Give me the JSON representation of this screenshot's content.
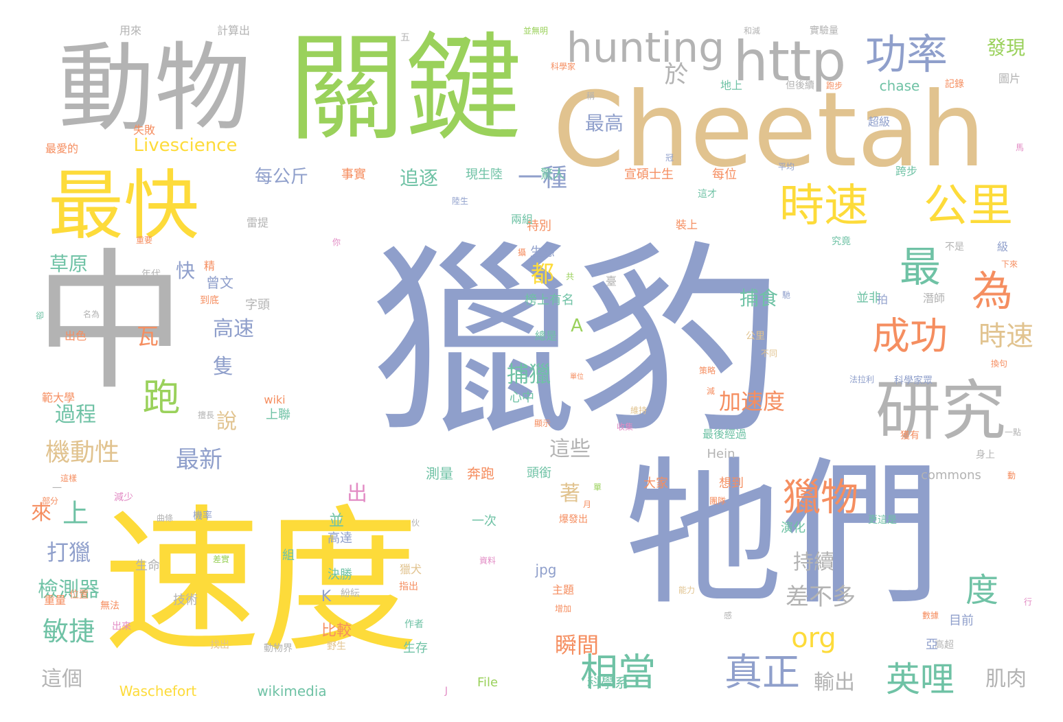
{
  "palette": {
    "blue": "#8f9fcb",
    "yellow": "#fddb3a",
    "green": "#9ad15b",
    "gray": "#b3b3b3",
    "tan": "#e1c38f",
    "orange": "#f58e60",
    "teal": "#6fc2a5",
    "pink": "#e28bc4"
  },
  "words": [
    "獵豹",
    "速度",
    "牠們",
    "中",
    "關鍵",
    "Cheetah",
    "動物",
    "最快",
    "研究",
    "http",
    "功率",
    "hunting",
    "時速",
    "公里",
    "最",
    "成功",
    "為",
    "跑",
    "獵物",
    "相當",
    "真正",
    "英哩",
    "度",
    "org",
    "時速",
    "於",
    "最高",
    "Livescience",
    "每公斤",
    "追逐",
    "一種",
    "發現",
    "草原",
    "快",
    "都",
    "捕食",
    "機動性",
    "最新",
    "說",
    "加速度",
    "捕獵",
    "高速",
    "隻",
    "過程",
    "瓦",
    "打獵",
    "上",
    "來",
    "敏捷",
    "檢測器",
    "差不多",
    "持續",
    "瞬間",
    "著",
    "出",
    "這些",
    "輸出",
    "肌肉",
    "這個",
    "Waschefort",
    "wikimedia",
    "File",
    "科學系",
    "jpg",
    "commons",
    "Hein",
    "K",
    "A",
    "現生陸",
    "驚人",
    "宣碩士生",
    "每位",
    "事實",
    "生態",
    "特別",
    "曾文",
    "字頭",
    "心中",
    "測量",
    "奔跑",
    "頭銜",
    "大家",
    "想到",
    "演化",
    "並",
    "高達",
    "決勝",
    "組",
    "生命",
    "技術",
    "紛紜",
    "主題",
    "目前",
    "高超",
    "生存",
    "動物界",
    "野生",
    "找出",
    "範大學",
    "出色",
    "名為",
    "到底",
    "年代",
    "雷提",
    "重要",
    "用來",
    "計算出",
    "五",
    "並無明",
    "和減",
    "實驗量",
    "圖片",
    "記錄",
    "跑步",
    "chase",
    "地上",
    "但後續",
    "科學家",
    "失敗",
    "最愛的",
    "超級",
    "馬",
    "平均",
    "跨步",
    "這才",
    "裝上",
    "究竟",
    "不是",
    "級",
    "並非",
    "潛師",
    "拍",
    "榜上有名",
    "總是",
    "公里",
    "馳",
    "換句",
    "科學家眾",
    "法拉利",
    "最後經過",
    "上聯",
    "wiki",
    "擅長",
    "卻",
    "冠",
    "稱",
    "陸生",
    "兩組",
    "攝",
    "共",
    "精",
    "一",
    "部分",
    "減少",
    "曲條",
    "機率",
    "單",
    "伙",
    "一次",
    "爆發出",
    "更這是",
    "團隊",
    "策略",
    "減",
    "單位",
    "不同",
    "收集",
    "顯示",
    "維持",
    "差實",
    "資料",
    "獵犬",
    "指出",
    "能力",
    "行",
    "感",
    "數據",
    "增加",
    "重量",
    "位置",
    "無法",
    "出來",
    "比較",
    "臺",
    "亞",
    "J",
    "作者",
    "一點",
    "獲有",
    "動",
    "下來",
    "身上",
    "你",
    "月",
    "這樣",
    "出仍"
  ]
}
